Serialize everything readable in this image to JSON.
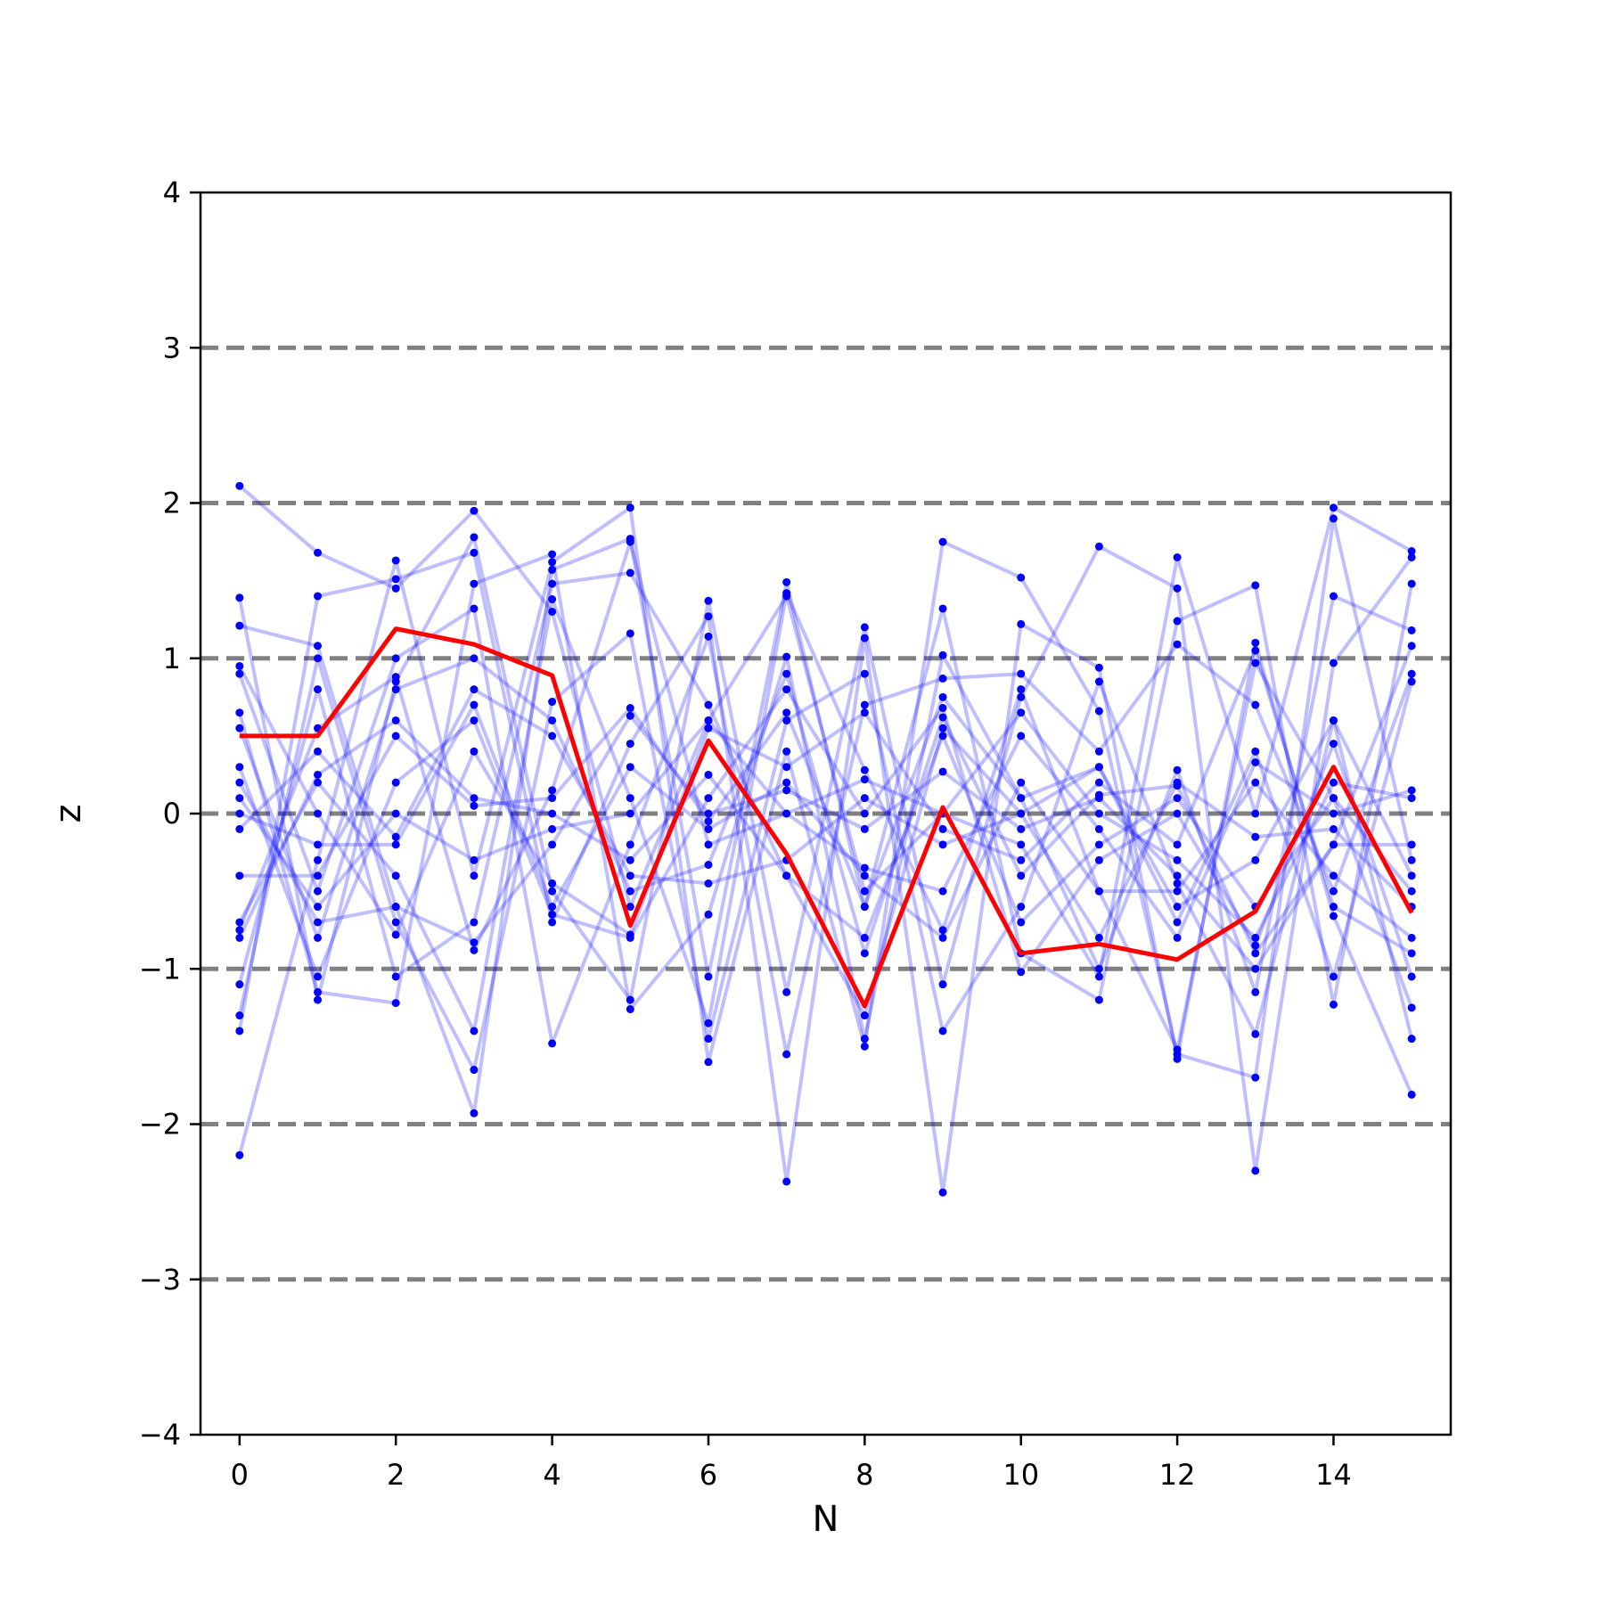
{
  "chart_data": {
    "type": "line",
    "title": "",
    "xlabel": "N",
    "ylabel": "z",
    "xlim": [
      -0.5,
      15.5
    ],
    "ylim": [
      -4,
      4
    ],
    "x_ticks": [
      0,
      2,
      4,
      6,
      8,
      10,
      12,
      14
    ],
    "x_tick_labels": [
      "0",
      "2",
      "4",
      "6",
      "8",
      "10",
      "12",
      "14"
    ],
    "y_ticks": [
      -4,
      -3,
      -2,
      -1,
      0,
      1,
      2,
      3,
      4
    ],
    "y_tick_labels": [
      "−4",
      "−3",
      "−2",
      "−1",
      "0",
      "1",
      "2",
      "3",
      "4"
    ],
    "reference_lines": [
      -3,
      -2,
      -1,
      0,
      1,
      2,
      3
    ],
    "grid": false,
    "legend": "none",
    "colors": {
      "highlight": "#ff0000",
      "samples": "#0000ff",
      "reference": "#808080"
    },
    "x": [
      0,
      1,
      2,
      3,
      4,
      5,
      6,
      7,
      8,
      9,
      10,
      11,
      12,
      13,
      14,
      15
    ],
    "highlight_series": {
      "values": [
        0.5,
        0.5,
        1.19,
        1.09,
        0.89,
        -0.72,
        0.47,
        -0.26,
        -1.24,
        0.04,
        -0.9,
        -0.84,
        -0.94,
        -0.63,
        0.3,
        -0.64
      ]
    },
    "series": [
      {
        "values": [
          2.11,
          1.68,
          1.45,
          1.95,
          1.3,
          -0.6,
          0.6,
          1.4,
          -0.5,
          0.0,
          -0.2,
          -1.05,
          1.65,
          0.0,
          1.97,
          1.69
        ]
      },
      {
        "values": [
          -2.2,
          -0.3,
          1.63,
          -0.4,
          1.62,
          1.97,
          -1.6,
          0.4,
          -1.5,
          1.75,
          1.52,
          0.66,
          -1.55,
          -1.7,
          1.9,
          -0.3
        ]
      },
      {
        "values": [
          1.39,
          -1.2,
          0.85,
          1.78,
          -0.5,
          -1.2,
          1.37,
          -1.15,
          1.2,
          -1.1,
          0.75,
          1.72,
          1.45,
          -2.3,
          0.97,
          1.65
        ]
      },
      {
        "values": [
          1.21,
          1.08,
          -0.6,
          -1.93,
          1.57,
          1.77,
          -1.05,
          1.49,
          -0.6,
          1.32,
          -0.9,
          -1.2,
          1.24,
          1.47,
          -1.23,
          1.48
        ]
      },
      {
        "values": [
          -1.4,
          1.4,
          1.51,
          1.68,
          -0.7,
          0.45,
          1.27,
          -2.37,
          1.13,
          -2.44,
          1.22,
          0.94,
          -1.58,
          1.1,
          -0.66,
          -1.81
        ]
      },
      {
        "values": [
          0.65,
          -1.15,
          -1.22,
          1.48,
          1.67,
          -1.26,
          -0.65,
          1.01,
          -1.45,
          1.02,
          0.1,
          -1.0,
          0.28,
          -1.15,
          1.4,
          1.18
        ]
      },
      {
        "values": [
          -1.3,
          1.0,
          -0.7,
          -1.65,
          0.72,
          1.16,
          -1.45,
          0.6,
          0.9,
          -1.4,
          -0.6,
          0.85,
          -0.45,
          -1.42,
          0.6,
          -1.45
        ]
      },
      {
        "values": [
          0.9,
          -0.5,
          1.0,
          1.32,
          -1.48,
          -0.2,
          1.14,
          -1.55,
          0.7,
          0.87,
          0.9,
          0.4,
          1.09,
          0.7,
          -0.5,
          0.9
        ]
      },
      {
        "values": [
          -0.7,
          0.2,
          -0.4,
          -1.4,
          1.38,
          0.1,
          -1.35,
          1.42,
          0.28,
          -0.75,
          0.8,
          -0.5,
          -1.52,
          0.97,
          0.1,
          -1.25
        ]
      },
      {
        "values": [
          0.55,
          -0.8,
          0.8,
          1.0,
          0.6,
          -0.5,
          -0.33,
          0.9,
          -0.9,
          0.62,
          -0.4,
          0.12,
          0.18,
          -0.9,
          -0.2,
          1.08
        ]
      },
      {
        "values": [
          -1.1,
          0.8,
          -1.05,
          -0.7,
          1.48,
          1.55,
          0.7,
          -0.4,
          -1.3,
          0.55,
          0.0,
          0.3,
          -0.7,
          0.4,
          -1.05,
          0.85
        ]
      },
      {
        "values": [
          0.3,
          -1.05,
          0.2,
          0.6,
          -0.65,
          -0.8,
          0.1,
          0.8,
          0.0,
          0.68,
          -1.02,
          -0.3,
          0.0,
          -0.85,
          0.45,
          -1.05
        ]
      },
      {
        "values": [
          -0.75,
          0.55,
          0.88,
          -0.88,
          0.15,
          1.75,
          -0.2,
          0.0,
          -0.35,
          -0.5,
          0.5,
          -0.1,
          -0.8,
          0.33,
          0.0,
          0.15
        ]
      },
      {
        "values": [
          0.95,
          0.0,
          -0.78,
          0.4,
          -0.45,
          -0.78,
          0.55,
          0.3,
          0.65,
          -0.1,
          -0.3,
          0.2,
          -0.2,
          1.05,
          -0.6,
          -0.9
        ]
      },
      {
        "values": [
          -0.4,
          -0.4,
          0.5,
          0.05,
          0.1,
          0.68,
          -0.05,
          0.65,
          -0.6,
          0.75,
          0.1,
          0.3,
          -0.6,
          -0.3,
          0.6,
          -0.4
        ]
      },
      {
        "values": [
          0.1,
          -0.6,
          0.0,
          -0.3,
          -0.1,
          0.0,
          0.6,
          0.0,
          0.22,
          0.0,
          0.65,
          0.0,
          -0.3,
          -0.8,
          0.2,
          0.1
        ]
      },
      {
        "values": [
          -0.1,
          0.4,
          -0.15,
          0.8,
          0.5,
          -0.4,
          -0.45,
          -0.3,
          0.1,
          -0.2,
          0.0,
          -0.8,
          0.2,
          -0.15,
          -0.1,
          -0.6
        ]
      },
      {
        "values": [
          0.2,
          -0.7,
          -0.6,
          -0.83,
          -0.2,
          0.63,
          0.0,
          0.15,
          -0.1,
          0.27,
          -0.1,
          0.1,
          -0.4,
          -1.0,
          -0.2,
          -0.2
        ]
      },
      {
        "values": [
          -0.8,
          0.25,
          0.6,
          0.1,
          0.0,
          -0.3,
          0.25,
          -0.4,
          -0.8,
          0.5,
          -0.7,
          -0.2,
          0.1,
          -0.6,
          0.1,
          -0.5
        ]
      },
      {
        "values": [
          0.0,
          -0.2,
          -0.2,
          0.7,
          -0.6,
          0.3,
          -0.1,
          0.2,
          -0.4,
          -0.8,
          0.2,
          -0.5,
          -0.5,
          0.2,
          -0.4,
          -0.8
        ]
      }
    ]
  }
}
